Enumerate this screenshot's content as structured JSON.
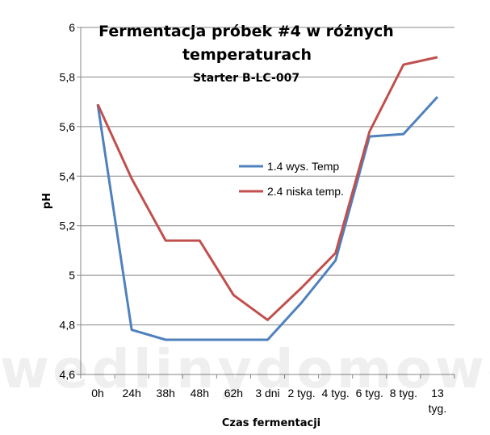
{
  "chart_data": {
    "type": "line",
    "title": "Fermentacja próbek #4 w różnych temperaturach",
    "title_lines": [
      "Fermentacja próbek #4 w różnych",
      "temperaturach"
    ],
    "subtitle": "Starter B-LC-007",
    "xlabel": "Czas fermentacji",
    "ylabel": "pH",
    "categories": [
      "0h",
      "24h",
      "38h",
      "48h",
      "62h",
      "3 dni",
      "2 tyg.",
      "4 tyg.",
      "6 tyg.",
      "8 tyg.",
      "13 tyg."
    ],
    "category_lines": [
      [
        "0h"
      ],
      [
        "24h"
      ],
      [
        "38h"
      ],
      [
        "48h"
      ],
      [
        "62h"
      ],
      [
        "3 dni"
      ],
      [
        "2 tyg."
      ],
      [
        "4 tyg."
      ],
      [
        "6 tyg."
      ],
      [
        "8 tyg."
      ],
      [
        "13",
        "tyg."
      ]
    ],
    "yticks": [
      "4,6",
      "4,8",
      "5",
      "5,2",
      "5,4",
      "5,6",
      "5,8",
      "6"
    ],
    "ylim": [
      4.6,
      6.0
    ],
    "grid": true,
    "legend_position": "center-right",
    "series": [
      {
        "name": "1.4 wys. Temp",
        "color": "#4f81bd",
        "values": [
          5.69,
          4.78,
          4.74,
          4.74,
          4.74,
          4.74,
          4.89,
          5.06,
          5.56,
          5.57,
          5.72
        ]
      },
      {
        "name": "2.4 niska temp.",
        "color": "#c0504d",
        "values": [
          5.69,
          5.39,
          5.14,
          5.14,
          4.92,
          4.82,
          4.95,
          5.09,
          5.58,
          5.85,
          5.88
        ]
      }
    ]
  },
  "watermark": "wedlinydomowe.pl"
}
